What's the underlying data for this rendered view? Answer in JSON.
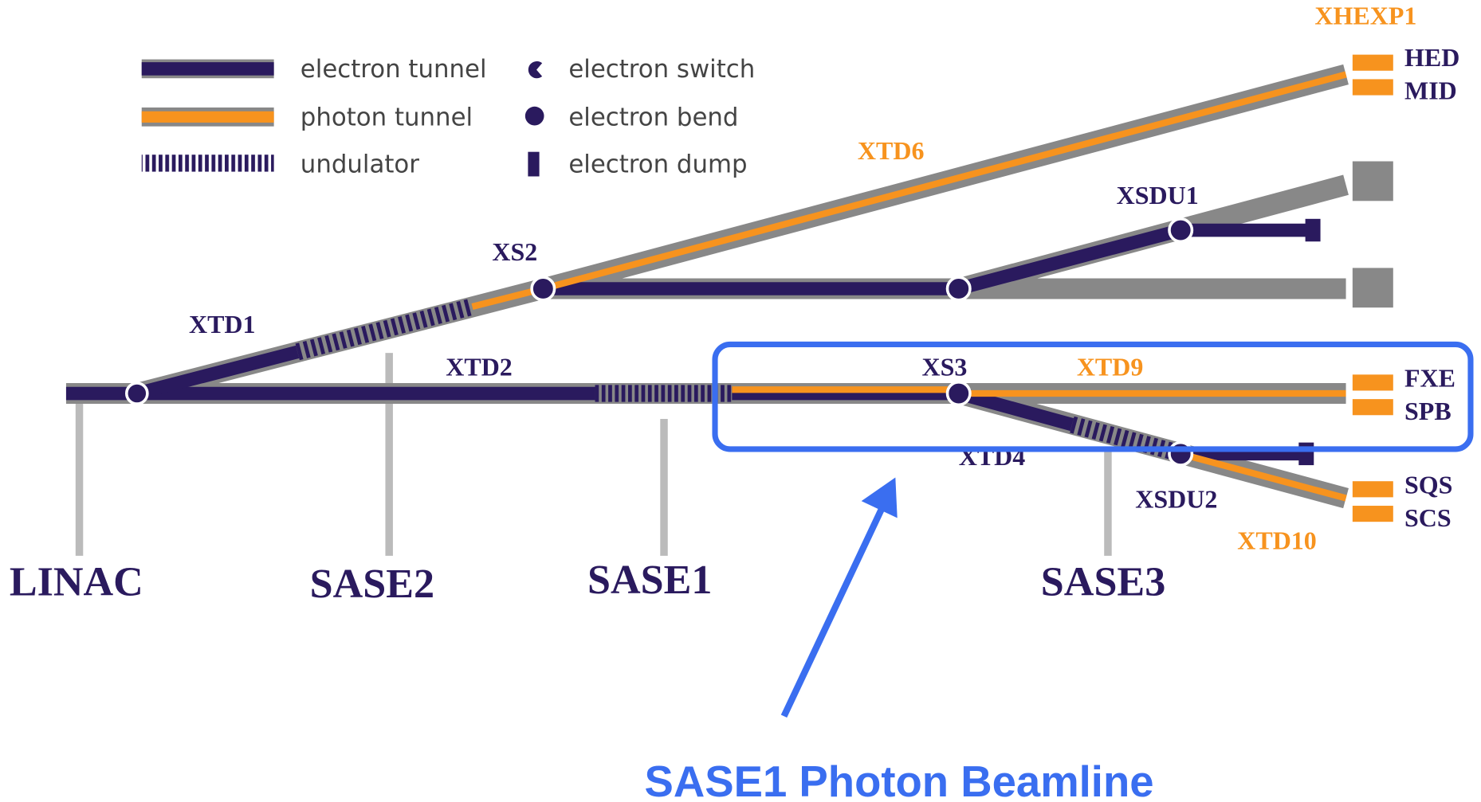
{
  "legend": [
    {
      "label": "electron tunnel"
    },
    {
      "label": "photon tunnel"
    },
    {
      "label": "undulator"
    },
    {
      "label": "electron switch"
    },
    {
      "label": "electron bend"
    },
    {
      "label": "electron dump"
    }
  ],
  "tunnels": {
    "xtd1": "XTD1",
    "xtd2": "XTD2",
    "xtd4": "XTD4",
    "xtd6": "XTD6",
    "xtd9": "XTD9",
    "xtd10": "XTD10",
    "xs2": "XS2",
    "xs3": "XS3",
    "xsdu1": "XSDU1",
    "xsdu2": "XSDU2",
    "xhexp1": "XHEXP1"
  },
  "instruments": {
    "hed": "HED",
    "mid": "MID",
    "fxe": "FXE",
    "spb": "SPB",
    "sqs": "SQS",
    "scs": "SCS"
  },
  "sections": [
    "LINAC",
    "SASE2",
    "SASE1",
    "SASE3"
  ],
  "callout": "SASE1 Photon Beamline"
}
